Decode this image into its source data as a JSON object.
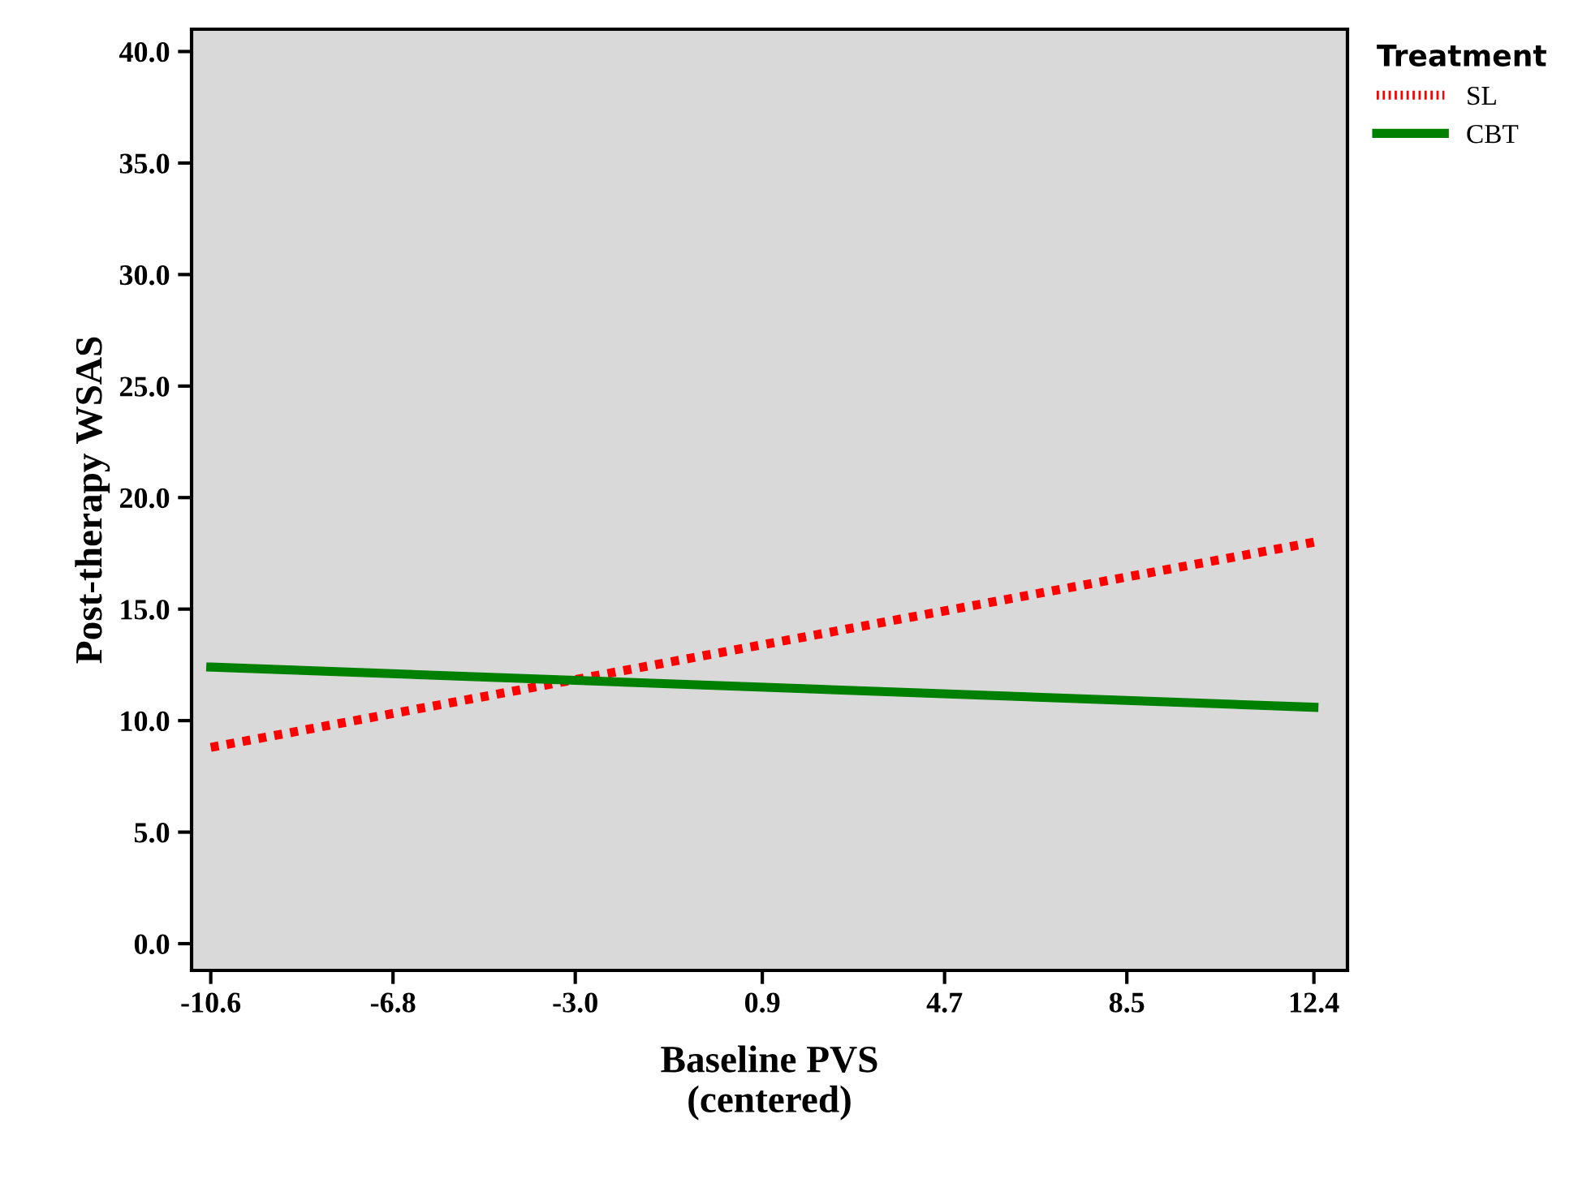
{
  "chart_data": {
    "type": "line",
    "xlabel": "Baseline PVS\n(centered)",
    "ylabel": "Post-therapy WSAS",
    "legend_title": "Treatment",
    "x": [
      -10.6,
      12.4
    ],
    "series": [
      {
        "name": "SL",
        "color": "#ff0000",
        "values": [
          8.8,
          18.0
        ],
        "line_style": "dotted"
      },
      {
        "name": "CBT",
        "color": "#008000",
        "values": [
          12.4,
          10.6
        ],
        "line_style": "solid"
      }
    ],
    "xlim": [
      -11.0,
      13.1
    ],
    "ylim": [
      -1.2,
      41.0
    ],
    "xticks": [
      {
        "value": -10.6,
        "label": "-10.6"
      },
      {
        "value": -6.8,
        "label": "-6.8"
      },
      {
        "value": -3.0,
        "label": "-3.0"
      },
      {
        "value": 0.9,
        "label": "0.9"
      },
      {
        "value": 4.7,
        "label": "4.7"
      },
      {
        "value": 8.5,
        "label": "8.5"
      },
      {
        "value": 12.4,
        "label": "12.4"
      }
    ],
    "yticks": [
      {
        "value": 0,
        "label": "0.0"
      },
      {
        "value": 5,
        "label": "5.0"
      },
      {
        "value": 10,
        "label": "10.0"
      },
      {
        "value": 15,
        "label": "15.0"
      },
      {
        "value": 20,
        "label": "20.0"
      },
      {
        "value": 25,
        "label": "25.0"
      },
      {
        "value": 30,
        "label": "30.0"
      },
      {
        "value": 35,
        "label": "35.0"
      },
      {
        "value": 40,
        "label": "40.0"
      }
    ],
    "grid": false,
    "legend": "top right"
  }
}
